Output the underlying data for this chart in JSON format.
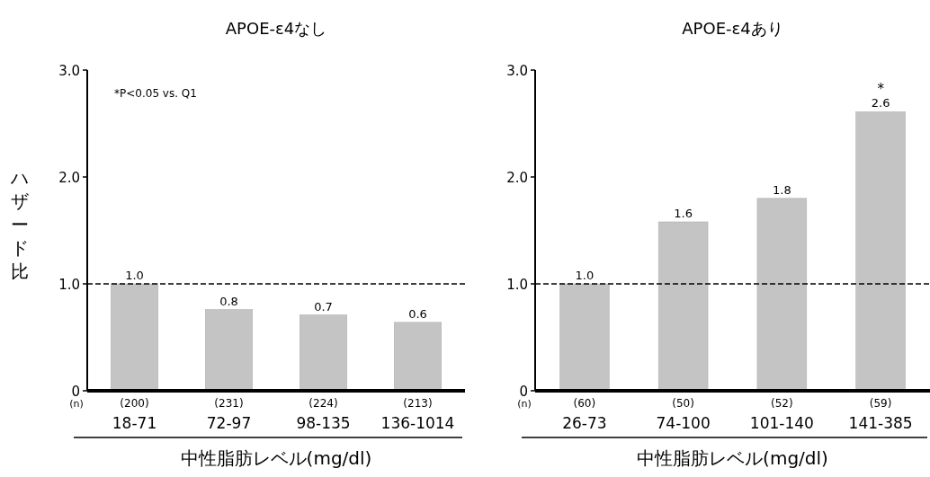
{
  "chart_data": [
    {
      "type": "bar",
      "title": "APOE-ε4なし",
      "xlabel": "中性脂肪レベル(mg/dl)",
      "ylabel": "ハザード比",
      "categories": [
        "(200)\n18-71",
        "(231)\n72-97",
        "(224)\n98-135",
        "(213)\n136-1014"
      ],
      "values": [
        1.0,
        0.76,
        0.71,
        0.64
      ],
      "value_labels": [
        "1.0",
        "0.8",
        "0.7",
        "0.6"
      ],
      "color": "#c4c4c4",
      "ylim": [
        0,
        3
      ],
      "yticks": [
        0,
        {
          "value": 1,
          "label": "1.0"
        },
        {
          "value": 2,
          "label": "2.0"
        },
        {
          "value": 3,
          "label": "3.0"
        }
      ],
      "ref_lines": [
        {
          "axis": "y",
          "value": 1,
          "color": "#000000",
          "line_style": "dashed"
        }
      ],
      "annotations": [
        "*P<0.05 vs. Q1",
        "(n)"
      ]
    },
    {
      "type": "bar",
      "title": "APOE-ε4あり",
      "xlabel": "中性脂肪レベル(mg/dl)",
      "categories": [
        "(60)\n26-73",
        "(50)\n74-100",
        "(52)\n101-140",
        "(59)\n141-385"
      ],
      "values": [
        1.0,
        1.58,
        1.8,
        2.61
      ],
      "value_labels": [
        "1.0",
        "1.6",
        "1.8",
        "2.6"
      ],
      "color": "#c4c4c4",
      "ylim": [
        0,
        3
      ],
      "yticks": [
        0,
        {
          "value": 1,
          "label": "1.0"
        },
        {
          "value": 2,
          "label": "2.0"
        },
        {
          "value": 3,
          "label": "3.0"
        }
      ],
      "ref_lines": [
        {
          "axis": "y",
          "value": 1,
          "color": "#000000",
          "line_style": "dashed"
        }
      ],
      "annotations": [
        "(n)",
        {
          "text": "*",
          "x": "(59)\n141-385",
          "y": 2.61
        }
      ]
    }
  ]
}
